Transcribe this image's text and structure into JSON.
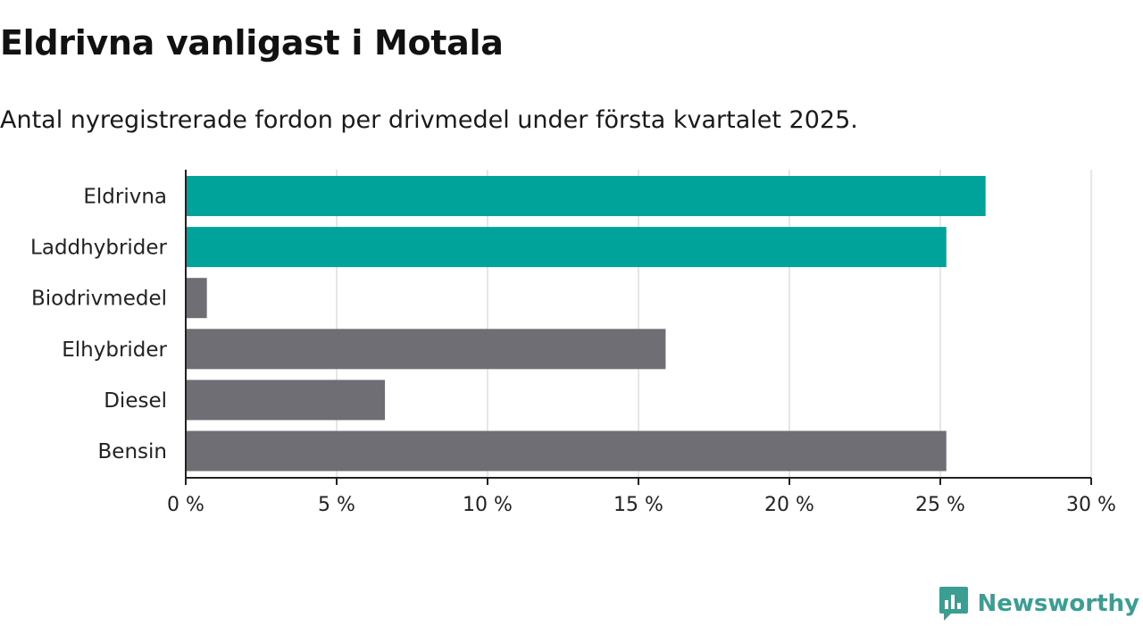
{
  "title": "Eldrivna vanligast i Motala",
  "subtitle": "Antal nyregistrerade fordon per drivmedel under första kvartalet 2025.",
  "brand": {
    "name": "Newsworthy",
    "icon": "newsworthy-logo-icon",
    "color": "#3a9e92"
  },
  "colors": {
    "highlight": "#00a39a",
    "default": "#6f6e74",
    "grid": "#dddddd",
    "axis": "#222222"
  },
  "chart_data": {
    "type": "bar",
    "orientation": "horizontal",
    "categories": [
      "Eldrivna",
      "Laddhybrider",
      "Biodrivmedel",
      "Elhybrider",
      "Diesel",
      "Bensin"
    ],
    "values": [
      26.5,
      25.2,
      0.7,
      15.9,
      6.6,
      25.2
    ],
    "highlighted": [
      true,
      true,
      false,
      false,
      false,
      false
    ],
    "xlim": [
      0,
      30
    ],
    "xticks": [
      0,
      5,
      10,
      15,
      20,
      25,
      30
    ],
    "xtick_labels": [
      "0 %",
      "5 %",
      "10 %",
      "15 %",
      "20 %",
      "25 %",
      "30 %"
    ],
    "grid": true,
    "xlabel": "",
    "ylabel": ""
  }
}
